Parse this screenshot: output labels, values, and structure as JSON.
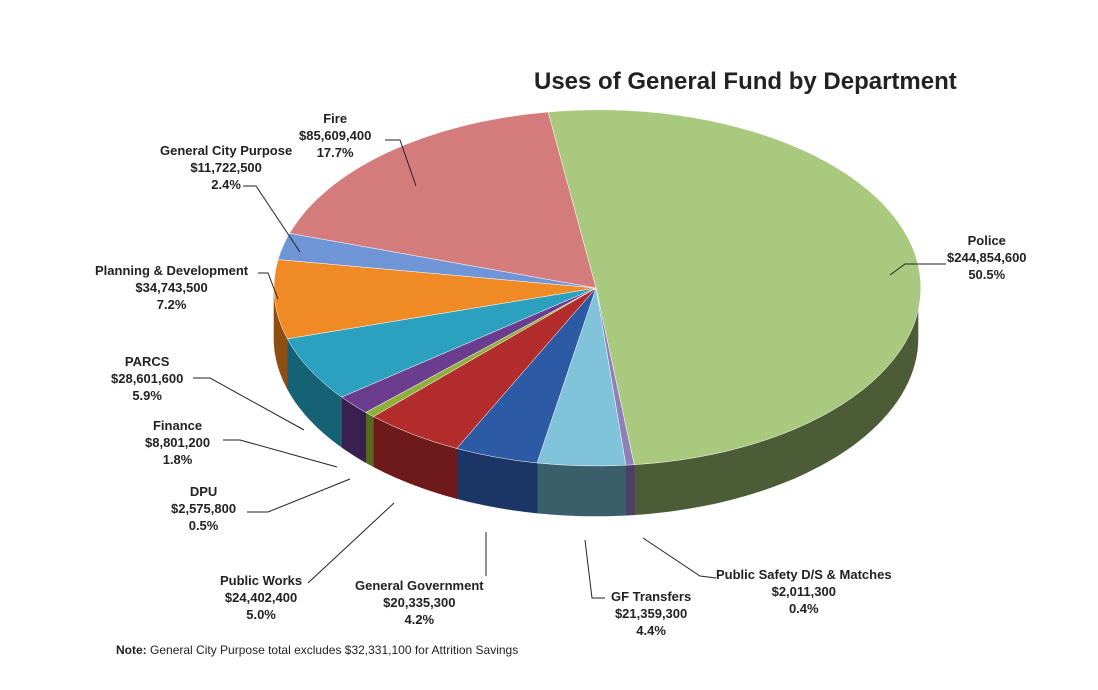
{
  "chart_data": {
    "type": "pie",
    "title": "Uses of General Fund by Department",
    "slices": [
      {
        "name": "Police",
        "amount": "$244,854,600",
        "value": 244854600,
        "percent": "50.5%",
        "color": "#a9c97e",
        "side": "#4c5c36"
      },
      {
        "name": "Public Safety D/S & Matches",
        "amount": "$2,011,300",
        "value": 2011300,
        "percent": "0.4%",
        "color": "#8e7fb5",
        "side": "#4a3f66"
      },
      {
        "name": "GF Transfers",
        "amount": "$21,359,300",
        "value": 21359300,
        "percent": "4.4%",
        "color": "#7fc2d9",
        "side": "#3b5e6b"
      },
      {
        "name": "General Government",
        "amount": "$20,335,300",
        "value": 20335300,
        "percent": "4.2%",
        "color": "#2c5aa5",
        "side": "#1a3566"
      },
      {
        "name": "Public Works",
        "amount": "$24,402,400",
        "value": 24402400,
        "percent": "5.0%",
        "color": "#b42d2d",
        "side": "#6e1a1a"
      },
      {
        "name": "DPU",
        "amount": "$2,575,800",
        "value": 2575800,
        "percent": "0.5%",
        "color": "#8eb038",
        "side": "#55691f"
      },
      {
        "name": "Finance",
        "amount": "$8,801,200",
        "value": 8801200,
        "percent": "1.8%",
        "color": "#6b3d8f",
        "side": "#3a2050"
      },
      {
        "name": "PARCS",
        "amount": "$28,601,600",
        "value": 28601600,
        "percent": "5.9%",
        "color": "#2ba0bf",
        "side": "#166275"
      },
      {
        "name": "Planning & Development",
        "amount": "$34,743,500",
        "value": 34743500,
        "percent": "7.2%",
        "color": "#f08a24",
        "side": "#8e4e12"
      },
      {
        "name": "General City Purpose",
        "amount": "$11,722,500",
        "value": 11722500,
        "percent": "2.4%",
        "color": "#6f95d6",
        "side": "#3c5a8c"
      },
      {
        "name": "Fire",
        "amount": "$85,609,400",
        "value": 85609400,
        "percent": "17.7%",
        "color": "#d47b7b",
        "side": "#8a4444"
      }
    ]
  },
  "note": {
    "prefix": "Note:",
    "text": "General City Purpose total excludes $32,331,100 for Attrition Savings"
  }
}
